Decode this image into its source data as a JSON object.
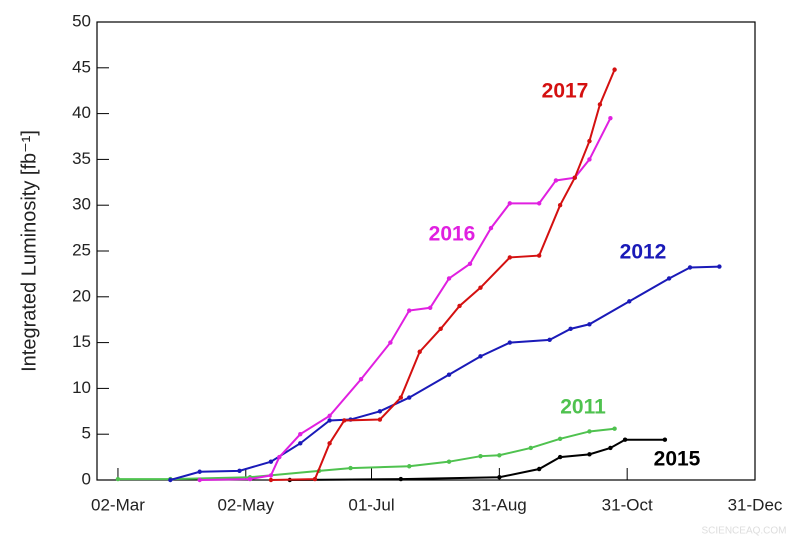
{
  "chart_data": {
    "type": "line",
    "y_label": "Integrated Luminosity [fb⁻¹]",
    "watermark": "SCIENCEAQ.COM",
    "xlim": [
      51,
      365
    ],
    "xticks": [
      {
        "value": 61,
        "label": "02-Mar"
      },
      {
        "value": 122,
        "label": "02-May"
      },
      {
        "value": 182,
        "label": "01-Jul"
      },
      {
        "value": 243,
        "label": "31-Aug"
      },
      {
        "value": 304,
        "label": "31-Oct"
      },
      {
        "value": 365,
        "label": "31-Dec"
      }
    ],
    "ylim": [
      0,
      50
    ],
    "yticks": [
      0,
      5,
      10,
      15,
      20,
      25,
      30,
      35,
      40,
      45,
      50
    ],
    "grid": false,
    "series": [
      {
        "name": "2011",
        "color": "#4fc24f",
        "x": [
          61,
          86,
          124,
          157,
          172,
          200,
          219,
          234,
          243,
          258,
          272,
          286,
          298
        ],
        "values": [
          0.1,
          0.1,
          0.3,
          1.0,
          1.3,
          1.5,
          2.0,
          2.6,
          2.7,
          3.5,
          4.5,
          5.3,
          5.6
        ]
      },
      {
        "name": "2012",
        "color": "#1a1ab8",
        "x": [
          86,
          100,
          119,
          134,
          148,
          162,
          172,
          186,
          200,
          219,
          234,
          248,
          267,
          277,
          286,
          305,
          324,
          334,
          348
        ],
        "values": [
          0,
          0.9,
          1.0,
          2.0,
          4.0,
          6.5,
          6.6,
          7.5,
          9.0,
          11.5,
          13.5,
          15.0,
          15.3,
          16.5,
          17.0,
          19.5,
          22.0,
          23.2,
          23.3
        ]
      },
      {
        "name": "2015",
        "color": "#000000",
        "x": [
          143,
          196,
          243,
          262,
          272,
          286,
          296,
          303,
          322
        ],
        "values": [
          0,
          0.1,
          0.3,
          1.2,
          2.5,
          2.8,
          3.5,
          4.4,
          4.4
        ]
      },
      {
        "name": "2016",
        "color": "#e020e0",
        "x": [
          100,
          124,
          134,
          138,
          148,
          162,
          177,
          191,
          200,
          210,
          219,
          229,
          239,
          248,
          262,
          270,
          279,
          286,
          296
        ],
        "values": [
          0,
          0.1,
          0.5,
          2.5,
          5.0,
          7.0,
          11.0,
          15.0,
          18.5,
          18.8,
          22.0,
          23.6,
          27.5,
          30.2,
          30.2,
          32.7,
          33.0,
          35.0,
          39.5
        ]
      },
      {
        "name": "2017",
        "color": "#d41010",
        "x": [
          134,
          155,
          162,
          169,
          186,
          196,
          205,
          215,
          224,
          234,
          248,
          262,
          272,
          279,
          286,
          291,
          298
        ],
        "values": [
          0,
          0.1,
          4.0,
          6.5,
          6.6,
          9.0,
          14.0,
          16.5,
          19.0,
          21.0,
          24.3,
          24.5,
          30.0,
          33.0,
          37.0,
          41.0,
          44.8
        ]
      }
    ]
  }
}
